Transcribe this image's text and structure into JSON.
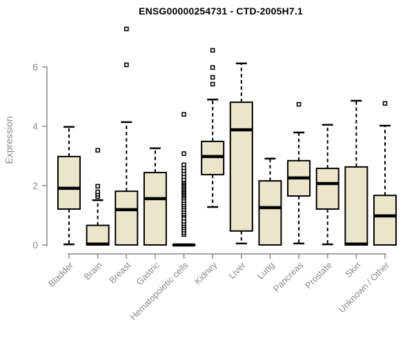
{
  "title": "ENSG00000254731 - CTD-2005H7.1",
  "chart_data": {
    "type": "boxplot",
    "title": "ENSG00000254731 - CTD-2005H7.1",
    "xlabel": "",
    "ylabel": "Expression",
    "yticks": [
      0,
      2,
      4,
      6
    ],
    "ylim": [
      0,
      7.4
    ],
    "grid": false,
    "categories": [
      "Bladder",
      "Brain",
      "Breast",
      "Gastric",
      "Hematopoietic cells",
      "Kidney",
      "Liver",
      "Lung",
      "Pancreas",
      "Prostate",
      "Skin",
      "Unknown / Other"
    ],
    "series": [
      {
        "name": "Bladder",
        "whisker_low": 0.02,
        "q1": 1.21,
        "median": 1.91,
        "q3": 2.98,
        "whisker_high": 3.98,
        "outliers": []
      },
      {
        "name": "Brain",
        "whisker_low": 0,
        "q1": 0,
        "median": 0.03,
        "q3": 0.66,
        "whisker_high": 1.51,
        "outliers": [
          1.63,
          1.71,
          1.79,
          1.98,
          3.19
        ]
      },
      {
        "name": "Breast",
        "whisker_low": 0,
        "q1": 0,
        "median": 1.19,
        "q3": 1.81,
        "whisker_high": 4.14,
        "outliers": [
          6.07,
          7.28
        ]
      },
      {
        "name": "Gastric",
        "whisker_low": 0,
        "q1": 0,
        "median": 1.56,
        "q3": 2.44,
        "whisker_high": 3.26,
        "outliers": []
      },
      {
        "name": "Hematopoietic cells",
        "whisker_low": 0,
        "q1": 0,
        "median": 0,
        "q3": 0,
        "whisker_high": 0,
        "outliers": [
          0.35,
          0.42,
          0.5,
          0.58,
          0.65,
          0.72,
          0.8,
          0.9,
          1.0,
          1.05,
          1.12,
          1.2,
          1.28,
          1.35,
          1.42,
          1.5,
          1.58,
          1.65,
          1.7,
          1.75,
          1.8,
          1.85,
          1.9,
          1.95,
          2.0,
          2.05,
          2.1,
          2.15,
          2.2,
          2.3,
          2.4,
          2.5,
          2.6,
          2.7,
          3.08,
          4.4
        ]
      },
      {
        "name": "Kidney",
        "whisker_low": 1.28,
        "q1": 2.37,
        "median": 2.98,
        "q3": 3.49,
        "whisker_high": 4.9,
        "outliers": [
          5.42,
          5.65,
          5.98,
          6.56
        ]
      },
      {
        "name": "Liver",
        "whisker_low": 0.05,
        "q1": 0.47,
        "median": 3.88,
        "q3": 4.81,
        "whisker_high": 6.12,
        "outliers": []
      },
      {
        "name": "Lung",
        "whisker_low": 0,
        "q1": 0,
        "median": 1.26,
        "q3": 2.16,
        "whisker_high": 2.91,
        "outliers": []
      },
      {
        "name": "Pancreas",
        "whisker_low": 0.05,
        "q1": 1.65,
        "median": 2.26,
        "q3": 2.84,
        "whisker_high": 3.79,
        "outliers": [
          4.74
        ]
      },
      {
        "name": "Prostate",
        "whisker_low": 0.02,
        "q1": 1.21,
        "median": 2.07,
        "q3": 2.58,
        "whisker_high": 4.05,
        "outliers": []
      },
      {
        "name": "Skin",
        "whisker_low": 0,
        "q1": 0,
        "median": 0.03,
        "q3": 2.63,
        "whisker_high": 4.86,
        "outliers": []
      },
      {
        "name": "Unknown / Other",
        "whisker_low": 0,
        "q1": 0,
        "median": 0.98,
        "q3": 1.67,
        "whisker_high": 4.02,
        "outliers": [
          4.77
        ]
      }
    ],
    "colors": {
      "box_fill": "#ebe6ca",
      "box_border": "#000000",
      "median": "#000000",
      "whisker": "#000000",
      "outlier_border": "#000000",
      "outlier_fill": "#ffffff",
      "axis": "#898989",
      "tick_label": "#8a8a8a",
      "title": "#000000",
      "background": "#ffffff"
    },
    "legend": null
  }
}
